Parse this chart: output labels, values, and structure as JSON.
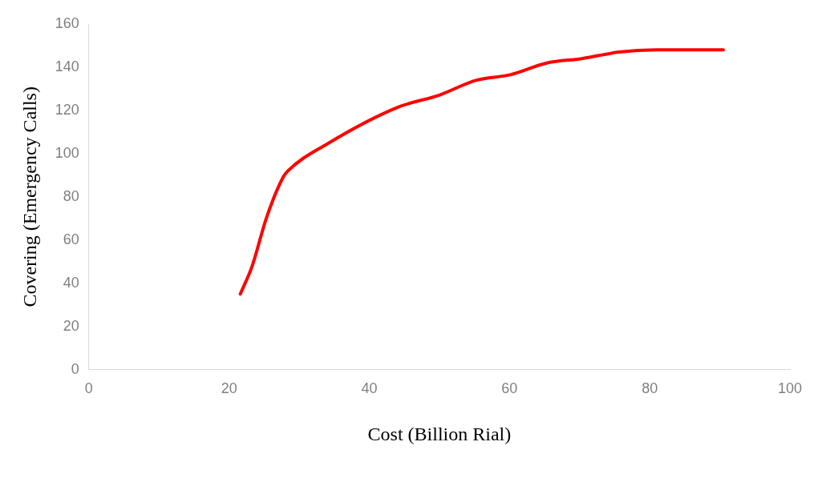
{
  "chart_data": {
    "type": "line",
    "xlabel": "Cost (Billion Rial)",
    "ylabel": "Covering (Emergency Calls)",
    "x": [
      21.6,
      23.3,
      25.3,
      27.7,
      28.4,
      34,
      44.1,
      49.9,
      55.3,
      60.1,
      65.4,
      70.3,
      75.6,
      80.9,
      90.5
    ],
    "series": [
      {
        "color": "#ff0000",
        "values": [
          35,
          48,
          70,
          89,
          92,
          104.5,
          121.5,
          127,
          134,
          136.5,
          142,
          144,
          147,
          148,
          148
        ]
      }
    ],
    "xlim": [
      0,
      100
    ],
    "xticks": [
      0,
      20,
      40,
      60,
      80,
      100
    ],
    "ylim": [
      0,
      160
    ],
    "yticks": [
      0,
      20,
      40,
      60,
      80,
      100,
      120,
      140,
      160
    ],
    "grid": false,
    "legend": false,
    "marker": "none",
    "line_style": "solid"
  }
}
